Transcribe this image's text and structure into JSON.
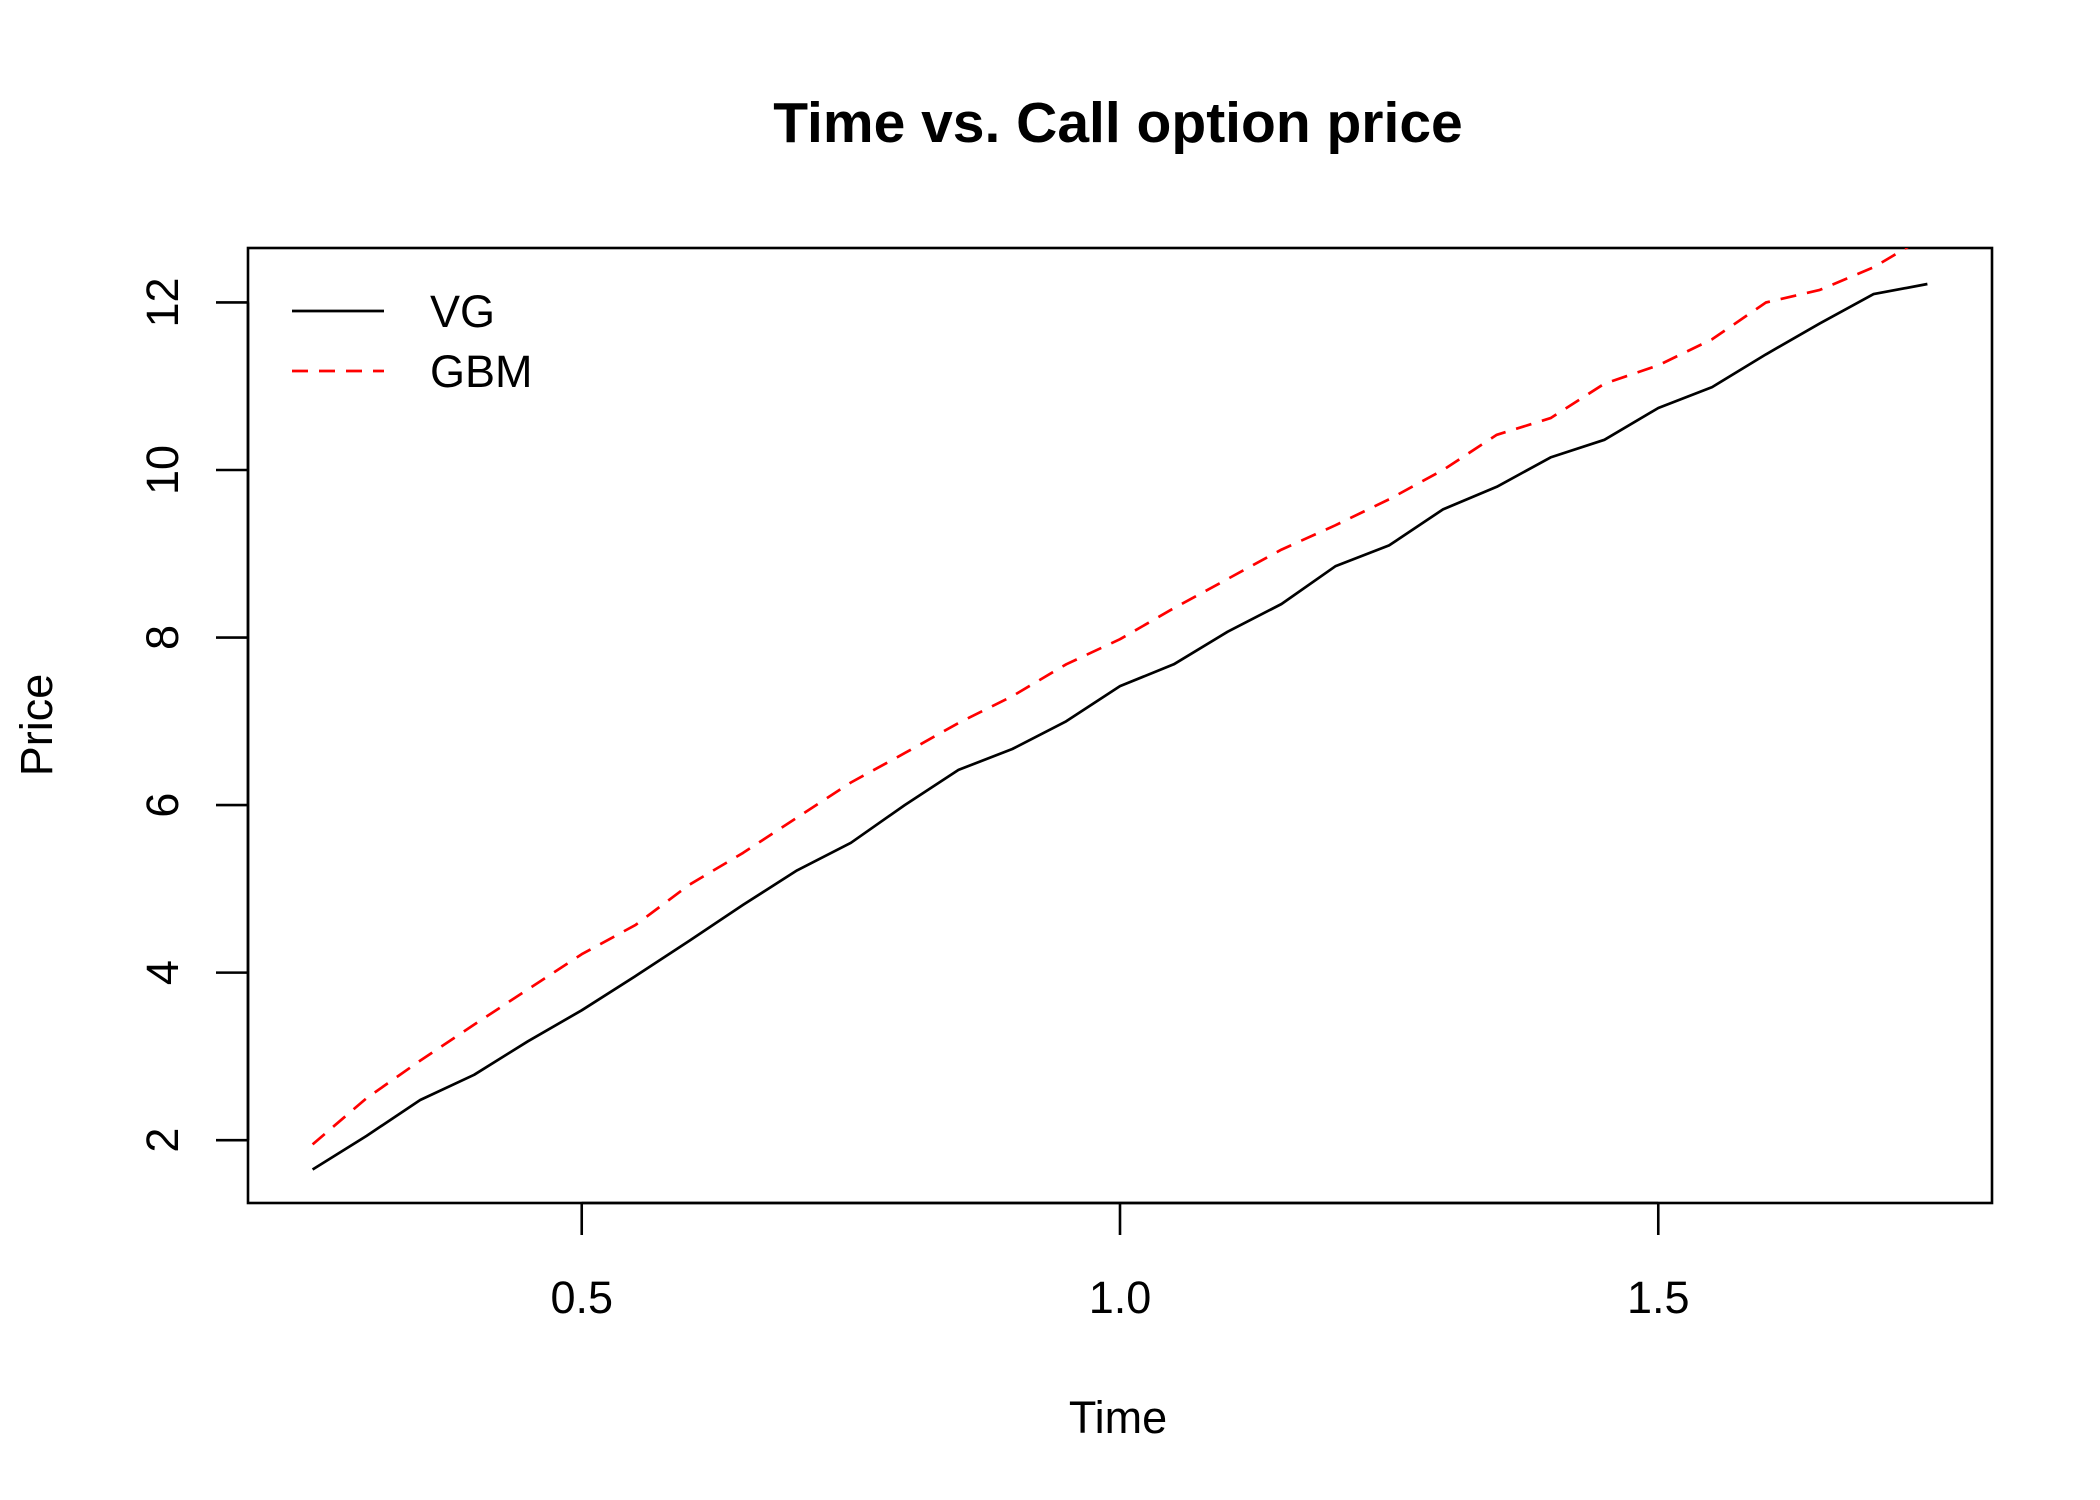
{
  "chart_data": {
    "type": "line",
    "title": "Time vs. Call option price",
    "xlabel": "Time",
    "ylabel": "Price",
    "xlim": [
      0.19,
      1.81
    ],
    "ylim": [
      1.25,
      12.65
    ],
    "xticks": [
      0.5,
      1.0,
      1.5
    ],
    "xtick_labels": [
      "0.5",
      "1.0",
      "1.5"
    ],
    "yticks": [
      2,
      4,
      6,
      8,
      10,
      12
    ],
    "ytick_labels": [
      "2",
      "4",
      "6",
      "8",
      "10",
      "12"
    ],
    "grid": false,
    "legend_position": "top-left",
    "x": [
      0.25,
      0.3,
      0.35,
      0.4,
      0.45,
      0.5,
      0.55,
      0.6,
      0.65,
      0.7,
      0.75,
      0.8,
      0.85,
      0.9,
      0.95,
      1.0,
      1.05,
      1.1,
      1.15,
      1.2,
      1.25,
      1.3,
      1.35,
      1.4,
      1.45,
      1.5,
      1.55,
      1.6,
      1.65,
      1.7,
      1.75
    ],
    "series": [
      {
        "name": "VG",
        "color": "#000000",
        "line_style": "solid",
        "values": [
          1.65,
          2.05,
          2.48,
          2.78,
          3.18,
          3.55,
          3.96,
          4.38,
          4.81,
          5.22,
          5.55,
          6.0,
          6.42,
          6.67,
          7.0,
          7.42,
          7.68,
          8.07,
          8.4,
          8.85,
          9.1,
          9.53,
          9.8,
          10.15,
          10.36,
          10.74,
          10.99,
          11.38,
          11.75,
          12.1,
          12.22
        ]
      },
      {
        "name": "GBM",
        "color": "#ff0000",
        "line_style": "dashed",
        "values": [
          1.95,
          2.5,
          2.95,
          3.38,
          3.8,
          4.22,
          4.57,
          5.05,
          5.43,
          5.85,
          6.27,
          6.62,
          6.98,
          7.3,
          7.68,
          7.98,
          8.35,
          8.7,
          9.05,
          9.34,
          9.65,
          10.0,
          10.42,
          10.62,
          11.03,
          11.25,
          11.56,
          12.0,
          12.15,
          12.42,
          12.8
        ]
      }
    ]
  }
}
